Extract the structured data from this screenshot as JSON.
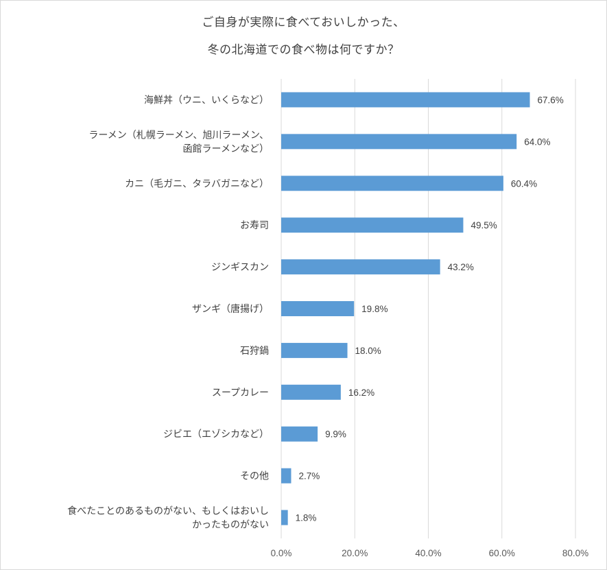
{
  "chart_data": {
    "type": "bar",
    "orientation": "horizontal",
    "title_lines": [
      "ご自身が実際に食べておいしかった、",
      "冬の北海道での食べ物は何ですか？"
    ],
    "categories": [
      [
        "海鮮丼（ウニ、いくらなど）"
      ],
      [
        "ラーメン（札幌ラーメン、旭川ラーメン、",
        "函館ラーメンなど）"
      ],
      [
        "カニ（毛ガニ、タラバガニなど）"
      ],
      [
        "お寿司"
      ],
      [
        "ジンギスカン"
      ],
      [
        "ザンギ（唐揚げ）"
      ],
      [
        "石狩鍋"
      ],
      [
        "スープカレー"
      ],
      [
        "ジビエ（エゾシカなど）"
      ],
      [
        "その他"
      ],
      [
        "食べたことのあるものがない、もしくはおいし",
        "かったものがない"
      ]
    ],
    "values": [
      67.6,
      64.0,
      60.4,
      49.5,
      43.2,
      19.8,
      18.0,
      16.2,
      9.9,
      2.7,
      1.8
    ],
    "value_labels": [
      "67.6%",
      "64.0%",
      "60.4%",
      "49.5%",
      "43.2%",
      "19.8%",
      "18.0%",
      "16.2%",
      "9.9%",
      "2.7%",
      "1.8%"
    ],
    "xlim": [
      0,
      80
    ],
    "xticks": [
      0,
      20,
      40,
      60,
      80
    ],
    "xtick_labels": [
      "0.0%",
      "20.0%",
      "40.0%",
      "60.0%",
      "80.0%"
    ],
    "grid": true,
    "bar_color": "#5b9bd5",
    "grid_color": "#d9d9d9"
  }
}
